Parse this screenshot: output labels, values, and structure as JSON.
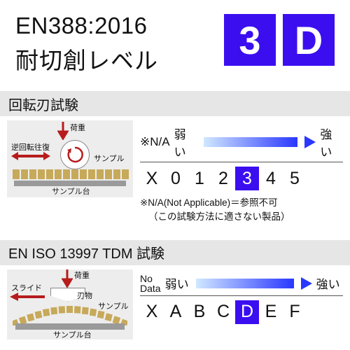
{
  "colors": {
    "accent": "#3b0ef0",
    "bar_bg": "#e6e6e6",
    "brick": "#c7a95a",
    "red": "#b71c1c",
    "grad_start": "#d0e8ff",
    "grad_end": "#2a37ff"
  },
  "header": {
    "standard": "EN388:2016",
    "level_label": "耐切創レベル",
    "badges": [
      {
        "value": "3",
        "bg": "#3b0ef0"
      },
      {
        "value": "D",
        "bg": "#3b0ef0"
      }
    ]
  },
  "test1": {
    "title": "回転刃試験",
    "diagram": {
      "load": "荷重",
      "reverse": "逆回転往復",
      "sample": "サンプル",
      "base": "サンプル台"
    },
    "scale": {
      "na": "※N/A",
      "weak": "弱い",
      "strong": "強い",
      "items": [
        "X",
        "0",
        "1",
        "2",
        "3",
        "4",
        "5"
      ],
      "highlight": "3"
    },
    "note1": "※N/A(Not Applicable)＝参照不可",
    "note2": "（この試験方法に適さない製品）"
  },
  "test2": {
    "title": "EN ISO 13997 TDM 試験",
    "diagram": {
      "load": "荷重",
      "slide": "スライド",
      "blade": "刃物",
      "sample": "サンプル",
      "base": "サンプル台"
    },
    "scale": {
      "nodata1": "No",
      "nodata2": "Data",
      "weak": "弱い",
      "strong": "強い",
      "items": [
        "X",
        "A",
        "B",
        "C",
        "D",
        "E",
        "F"
      ],
      "highlight": "D"
    }
  }
}
